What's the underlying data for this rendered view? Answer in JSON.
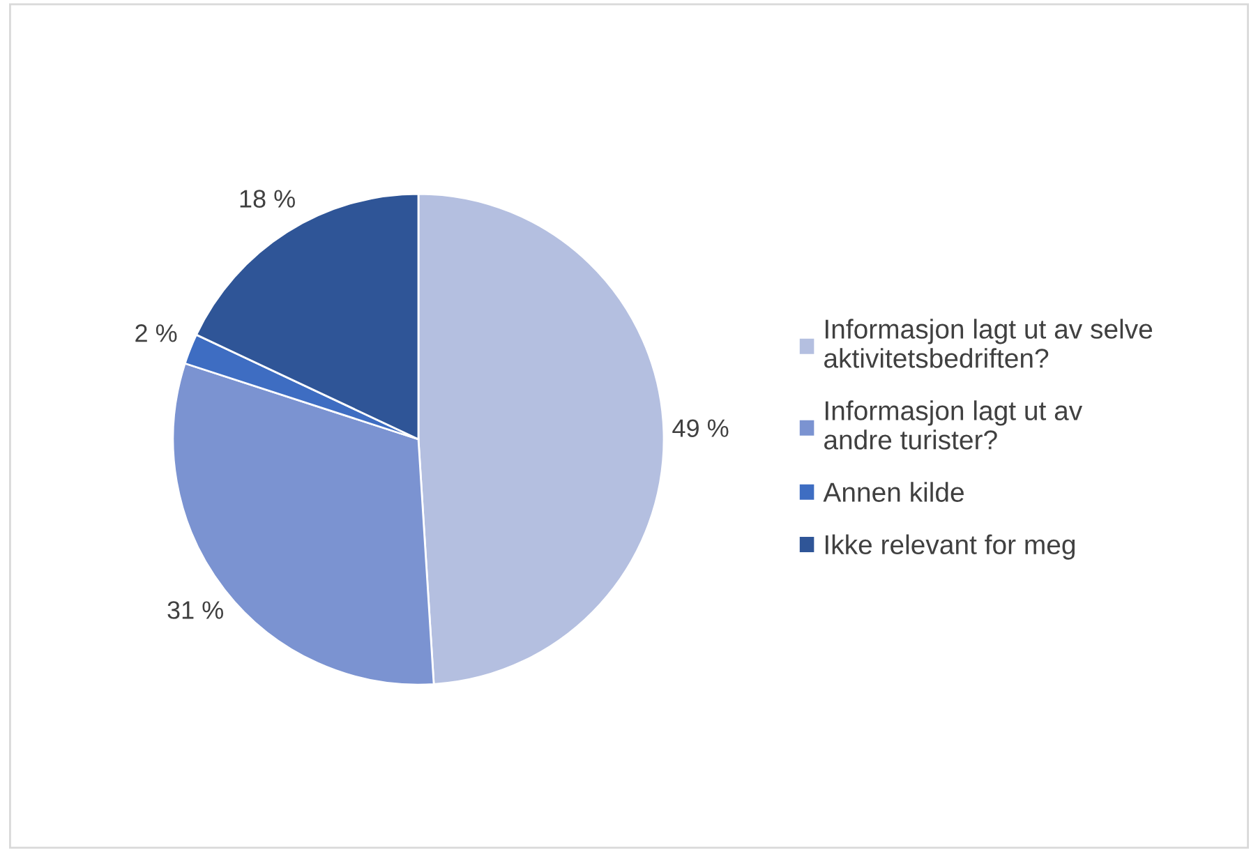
{
  "chart_data": {
    "type": "pie",
    "categories": [
      "Informasjon lagt ut av selve\naktivitetsbedriften?",
      "Informasjon lagt ut av\nandre turister?",
      "Annen kilde",
      "Ikke relevant for meg"
    ],
    "values": [
      49,
      31,
      2,
      18
    ],
    "colors": [
      "#b4bfe0",
      "#7b93d1",
      "#3e6dc2",
      "#2f5597"
    ],
    "value_labels": [
      "49 %",
      "31 %",
      "2 %",
      "18 %"
    ],
    "legend": "right"
  }
}
